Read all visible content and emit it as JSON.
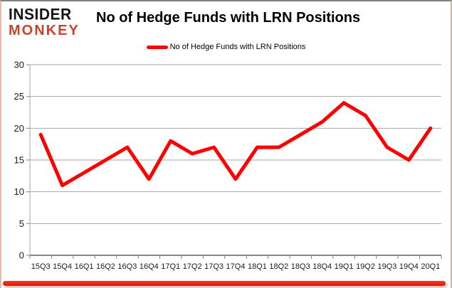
{
  "logo": {
    "line1": "INSIDER",
    "line2": "MONKEY"
  },
  "header": {
    "title": "No of Hedge Funds with LRN Positions"
  },
  "legend": {
    "label": "No of Hedge Funds with LRN Positions"
  },
  "colors": {
    "series_line": "#fe0000",
    "gridline": "#a6a6a6",
    "axis_line": "#404040",
    "tick": "#808080",
    "label_text": "#1a1a1a",
    "logo_accent": "#c8452b",
    "bottom_bar": "#e41e0e"
  },
  "chart_data": {
    "type": "line",
    "title": "No of Hedge Funds with LRN Positions",
    "xlabel": "",
    "ylabel": "",
    "ylim": [
      0,
      30
    ],
    "ytick_step": 5,
    "grid": true,
    "legend_position": "top-center",
    "categories": [
      "15Q3",
      "15Q4",
      "16Q1",
      "16Q2",
      "16Q3",
      "16Q4",
      "17Q1",
      "17Q2",
      "17Q3",
      "17Q4",
      "18Q1",
      "18Q2",
      "18Q3",
      "18Q4",
      "19Q1",
      "19Q2",
      "19Q3",
      "19Q4",
      "20Q1"
    ],
    "series": [
      {
        "name": "No of Hedge Funds with LRN Positions",
        "color": "#fe0000",
        "values": [
          19,
          11,
          13,
          15,
          17,
          12,
          18,
          16,
          17,
          12,
          17,
          17,
          19,
          21,
          24,
          22,
          17,
          15,
          20
        ]
      }
    ]
  }
}
